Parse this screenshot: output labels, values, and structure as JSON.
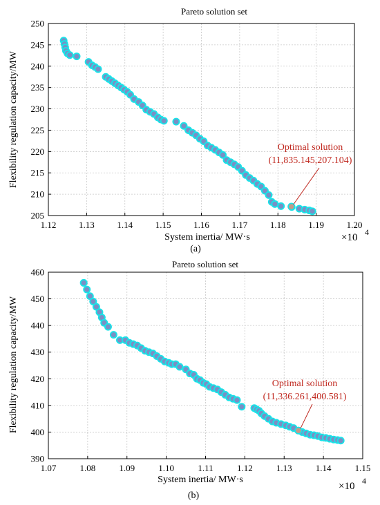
{
  "chart_data": [
    {
      "type": "scatter",
      "panel_label": "(a)",
      "title": "Pareto solution set",
      "xlabel": "System inertia/  MW·s",
      "ylabel": "Flexibility regulation capacity/MW",
      "x_multiplier_base": "×10",
      "x_multiplier_exp": "4",
      "xlim": [
        1.12,
        1.2
      ],
      "ylim": [
        205,
        250
      ],
      "xticks": [
        "1.12",
        "1.13",
        "1.14",
        "1.15",
        "1.16",
        "1.17",
        "1.18",
        "1.19",
        "1.20"
      ],
      "yticks": [
        "205",
        "210",
        "215",
        "220",
        "225",
        "230",
        "235",
        "240",
        "245",
        "250"
      ],
      "grid": true,
      "point_color": "#7a8fc4",
      "halo_color": "#19e3e8",
      "optimal_color": "#c49a8a",
      "x": [
        1.124,
        1.1242,
        1.1244,
        1.1246,
        1.125,
        1.1256,
        1.1274,
        1.1305,
        1.1314,
        1.1322,
        1.133,
        1.135,
        1.1358,
        1.1366,
        1.1374,
        1.1382,
        1.139,
        1.1398,
        1.1406,
        1.1414,
        1.1424,
        1.1436,
        1.1446,
        1.1456,
        1.1466,
        1.1476,
        1.1486,
        1.1494,
        1.1502,
        1.1534,
        1.1554,
        1.1566,
        1.1576,
        1.1586,
        1.1596,
        1.1606,
        1.1616,
        1.1626,
        1.1636,
        1.1646,
        1.1656,
        1.1666,
        1.1676,
        1.1686,
        1.1696,
        1.1706,
        1.1716,
        1.1726,
        1.1736,
        1.1746,
        1.1756,
        1.1766,
        1.1776,
        1.1784,
        1.1792,
        1.1808,
        1.1836,
        1.1856,
        1.187,
        1.1882,
        1.189
      ],
      "y": [
        246.0,
        245.2,
        244.4,
        243.6,
        243.0,
        242.6,
        242.3,
        241.0,
        240.2,
        239.8,
        239.3,
        237.5,
        237.0,
        236.5,
        236.0,
        235.5,
        235.0,
        234.5,
        234.0,
        233.3,
        232.3,
        231.6,
        230.8,
        229.8,
        229.3,
        228.8,
        228.0,
        227.5,
        227.2,
        227.0,
        226.0,
        225.0,
        224.4,
        223.8,
        223.0,
        222.4,
        221.4,
        220.9,
        220.4,
        219.8,
        219.2,
        218.0,
        217.5,
        217.0,
        216.4,
        215.5,
        214.5,
        213.8,
        213.2,
        212.4,
        211.8,
        210.8,
        209.8,
        208.2,
        207.7,
        207.2,
        207.0,
        206.6,
        206.4,
        206.2,
        206.0
      ],
      "optimal": {
        "x": 1.1835145,
        "y": 207.104,
        "label": "Optimal solution",
        "coords": "(11,835.145,207.104)"
      }
    },
    {
      "type": "scatter",
      "panel_label": "(b)",
      "title": "Pareto solution set",
      "xlabel": "System inertia/  MW·s",
      "ylabel": "Flexibility regulation capacity/MW",
      "x_multiplier_base": "×10",
      "x_multiplier_exp": "4",
      "xlim": [
        1.07,
        1.15
      ],
      "ylim": [
        390,
        460
      ],
      "xticks": [
        "1.07",
        "1.08",
        "1.09",
        "1.10",
        "1.11",
        "1.12",
        "1.13",
        "1.14",
        "1.15"
      ],
      "yticks": [
        "390",
        "400",
        "410",
        "420",
        "430",
        "440",
        "450",
        "460"
      ],
      "grid": true,
      "point_color": "#7a8fc4",
      "halo_color": "#19e3e8",
      "optimal_color": "#c49a8a",
      "x": [
        1.079,
        1.0798,
        1.0806,
        1.0814,
        1.0822,
        1.083,
        1.0836,
        1.0842,
        1.0852,
        1.0866,
        1.0882,
        1.0896,
        1.0906,
        1.0916,
        1.0926,
        1.0936,
        1.0946,
        1.0956,
        1.0966,
        1.0976,
        1.0986,
        1.0996,
        1.1006,
        1.1014,
        1.1024,
        1.1034,
        1.105,
        1.106,
        1.107,
        1.1078,
        1.1086,
        1.1094,
        1.1102,
        1.111,
        1.112,
        1.113,
        1.114,
        1.115,
        1.116,
        1.117,
        1.118,
        1.1192,
        1.1224,
        1.123,
        1.1236,
        1.1242,
        1.125,
        1.126,
        1.127,
        1.128,
        1.1292,
        1.1304,
        1.1314,
        1.1324,
        1.1336,
        1.1346,
        1.1356,
        1.1366,
        1.1376,
        1.1386,
        1.1396,
        1.1406,
        1.1416,
        1.1426,
        1.1436,
        1.1444
      ],
      "y": [
        456.0,
        453.5,
        451.0,
        449.0,
        447.0,
        445.0,
        443.0,
        441.0,
        439.5,
        436.5,
        434.5,
        434.5,
        433.5,
        433.0,
        432.5,
        431.5,
        430.5,
        430.0,
        429.5,
        428.5,
        427.5,
        426.5,
        426.0,
        425.5,
        425.5,
        424.5,
        423.5,
        422.0,
        421.5,
        420.0,
        419.5,
        418.5,
        418.0,
        417.0,
        416.5,
        416.0,
        415.0,
        414.0,
        413.0,
        412.5,
        412.0,
        409.5,
        409.0,
        408.5,
        408.0,
        407.0,
        406.0,
        405.0,
        404.0,
        403.5,
        403.0,
        402.5,
        402.0,
        401.5,
        400.581,
        400.0,
        399.5,
        399.0,
        398.8,
        398.5,
        398.0,
        397.8,
        397.5,
        397.2,
        397.0,
        396.8
      ],
      "optimal": {
        "x": 1.1336261,
        "y": 400.581,
        "label": "Optimal solution",
        "coords": "(11,336.261,400.581)"
      }
    }
  ]
}
